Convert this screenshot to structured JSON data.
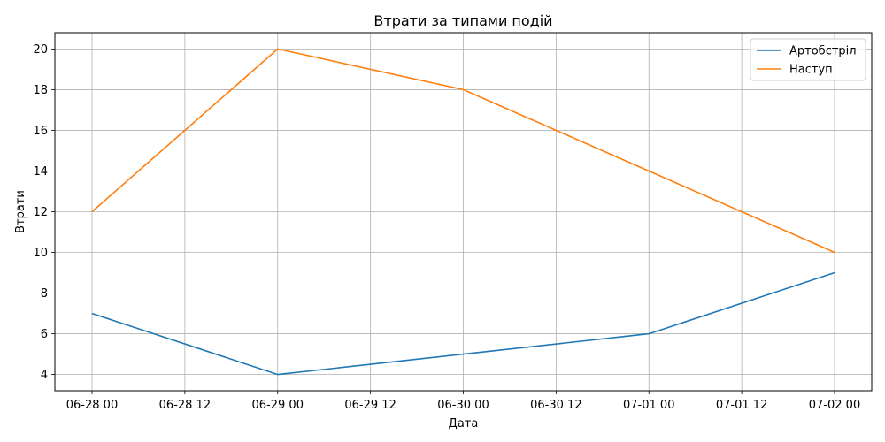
{
  "chart_data": {
    "type": "line",
    "title": "Втрати за типами подій",
    "xlabel": "Дата",
    "ylabel": "Втрати",
    "x": [
      "2023-06-28",
      "2023-06-29",
      "2023-06-30",
      "2023-07-01",
      "2023-07-02"
    ],
    "x_tick_labels": [
      "06-28 00",
      "06-28 12",
      "06-29 00",
      "06-29 12",
      "06-30 00",
      "06-30 12",
      "07-01 00",
      "07-01 12",
      "07-02 00"
    ],
    "y_ticks": [
      4,
      6,
      8,
      10,
      12,
      14,
      16,
      18,
      20
    ],
    "ylim": [
      3.2,
      20.8
    ],
    "grid": true,
    "legend_position": "top-right",
    "series": [
      {
        "name": "Артобстріл",
        "color": "#1f77b4",
        "values": [
          7,
          4,
          5,
          6,
          9
        ]
      },
      {
        "name": "Наступ",
        "color": "#ff7f0e",
        "values": [
          12,
          20,
          18,
          14,
          10
        ]
      }
    ]
  }
}
